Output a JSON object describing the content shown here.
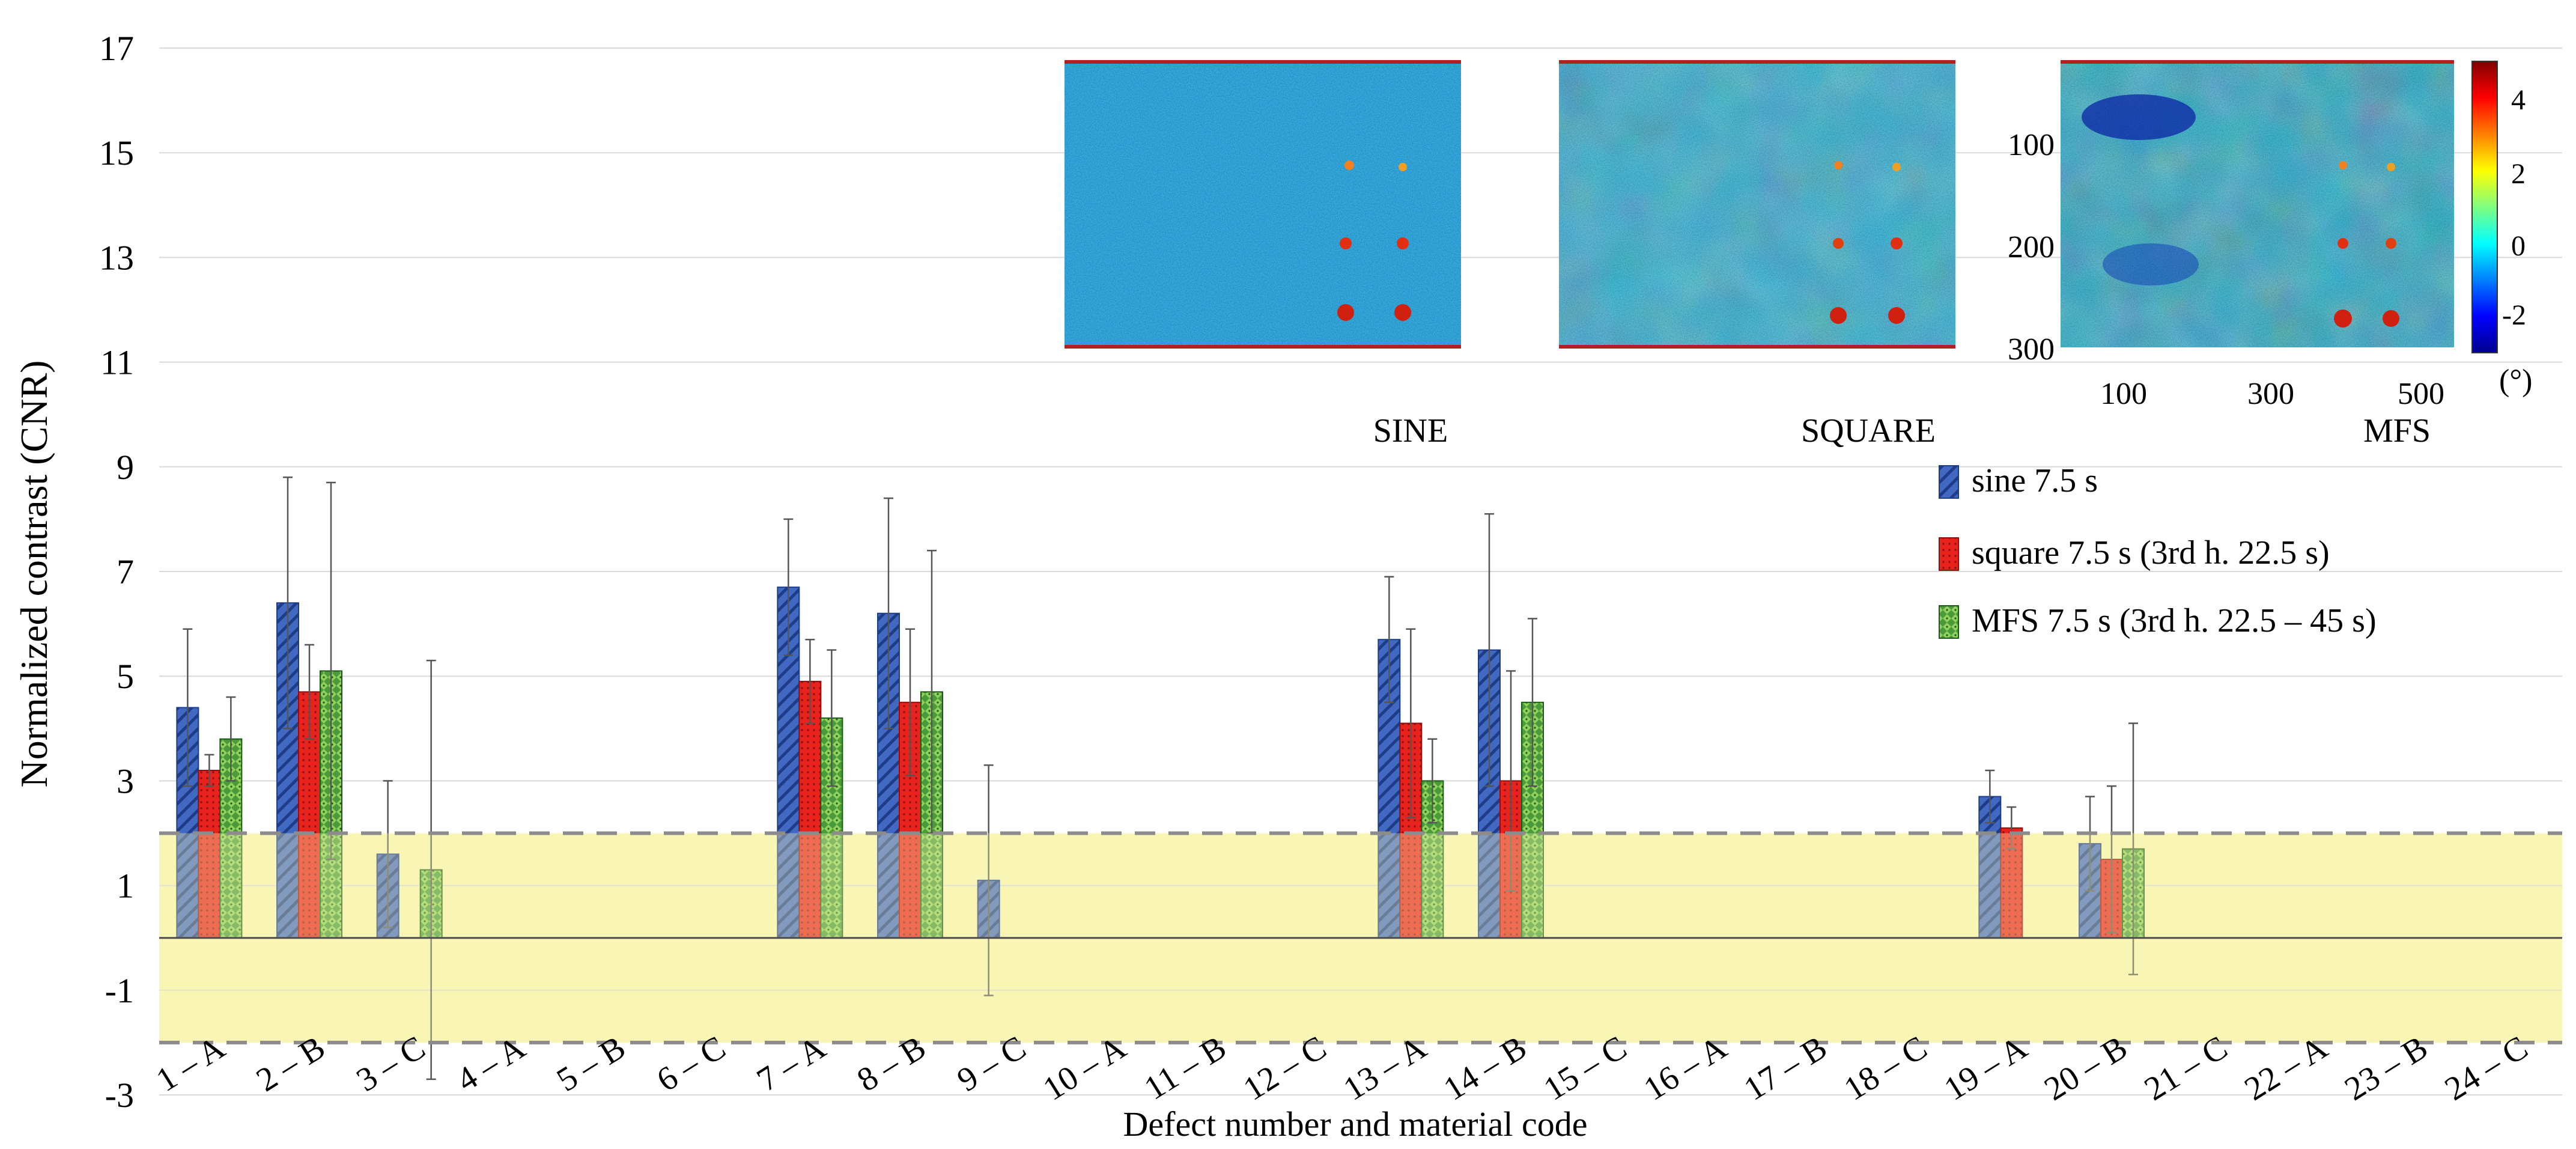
{
  "chart_data": {
    "type": "bar",
    "title": "",
    "xlabel": "Defect number and material code",
    "ylabel": "Normalized contrast  (CNR)",
    "ylim": [
      -3,
      17
    ],
    "yticks": [
      -3,
      -1,
      1,
      3,
      5,
      7,
      9,
      11,
      13,
      15,
      17
    ],
    "grid": true,
    "threshold": 2,
    "threshold_band_color": "#f9f5b4",
    "threshold_line_color": "#8c8c8c",
    "categories": [
      "1 – A",
      "2 – B",
      "3 – C",
      "4 – A",
      "5 – B",
      "6 – C",
      "7 – A",
      "8 – B",
      "9 – C",
      "10 – A",
      "11 – B",
      "12 – C",
      "13 – A",
      "14 – B",
      "15 – C",
      "16 – A",
      "17 – B",
      "18 – C",
      "19 – A",
      "20 – B",
      "21 – C",
      "22 – A",
      "23 – B",
      "24 – C"
    ],
    "series": [
      {
        "name": "sine 7.5 s",
        "color": "#3f63b5",
        "values": [
          4.4,
          6.4,
          1.6,
          null,
          null,
          null,
          6.7,
          6.2,
          1.1,
          null,
          null,
          null,
          5.7,
          5.5,
          null,
          null,
          null,
          null,
          2.7,
          1.8,
          null,
          null,
          null,
          null
        ],
        "errors": [
          1.5,
          2.4,
          1.4,
          null,
          null,
          null,
          1.3,
          2.2,
          2.2,
          null,
          null,
          null,
          1.2,
          2.6,
          null,
          null,
          null,
          null,
          0.5,
          0.9,
          null,
          null,
          null,
          null
        ]
      },
      {
        "name": "square 7.5 s (3rd h. 22.5 s)",
        "color": "#e0201b",
        "values": [
          3.2,
          4.7,
          null,
          null,
          null,
          null,
          4.9,
          4.5,
          null,
          null,
          null,
          null,
          4.1,
          3.0,
          null,
          null,
          null,
          null,
          2.1,
          1.5,
          null,
          null,
          null,
          null
        ],
        "errors": [
          0.3,
          0.9,
          null,
          null,
          null,
          null,
          0.8,
          1.4,
          null,
          null,
          null,
          null,
          1.8,
          2.1,
          null,
          null,
          null,
          null,
          0.4,
          1.4,
          null,
          null,
          null,
          null
        ]
      },
      {
        "name": "MFS 7.5 s (3rd h. 22.5 – 45 s)",
        "color": "#2f7a2a",
        "values": [
          3.8,
          5.1,
          1.3,
          null,
          null,
          null,
          4.2,
          4.7,
          null,
          null,
          null,
          null,
          3.0,
          4.5,
          null,
          null,
          null,
          null,
          null,
          1.7,
          null,
          null,
          null,
          null
        ],
        "errors": [
          0.8,
          3.6,
          4.0,
          null,
          null,
          null,
          1.3,
          2.7,
          null,
          null,
          null,
          null,
          0.8,
          1.6,
          null,
          null,
          null,
          null,
          null,
          2.4,
          null,
          null,
          null,
          null
        ]
      }
    ]
  },
  "inset": {
    "panels": [
      {
        "label": "SINE"
      },
      {
        "label": "SQUARE"
      },
      {
        "label": "MFS"
      }
    ],
    "y_ticks": [
      "100",
      "200",
      "300"
    ],
    "x_ticks": [
      "100",
      "300",
      "500"
    ],
    "colorbar_ticks": [
      "4",
      "2",
      "0",
      "-2"
    ],
    "colorbar_unit": "(°)"
  }
}
